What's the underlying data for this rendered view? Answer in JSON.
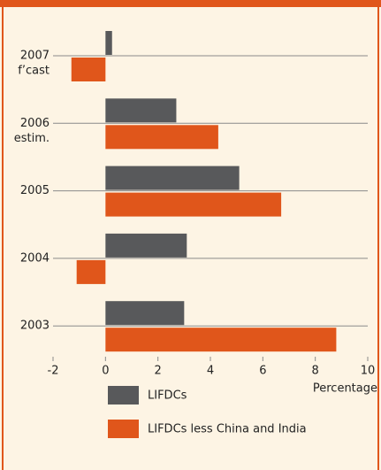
{
  "chart_data": {
    "type": "hbar",
    "categories": [
      [
        "2007",
        "f’cast"
      ],
      [
        "2006",
        "estim."
      ],
      [
        "2005"
      ],
      [
        "2004"
      ],
      [
        "2003"
      ]
    ],
    "series": [
      {
        "name": "LIFDCs",
        "color": "#58595b",
        "values": [
          0.25,
          2.7,
          5.1,
          3.1,
          3.0
        ]
      },
      {
        "name": "LIFDCs less China and India",
        "color": "#e0561b",
        "values": [
          -1.3,
          4.3,
          6.7,
          -1.1,
          8.8
        ]
      }
    ],
    "xlim": [
      -2,
      10
    ],
    "xticks": [
      -2,
      0,
      2,
      4,
      6,
      8,
      10
    ],
    "xlabel": "Percentage",
    "legend": "bottom"
  }
}
